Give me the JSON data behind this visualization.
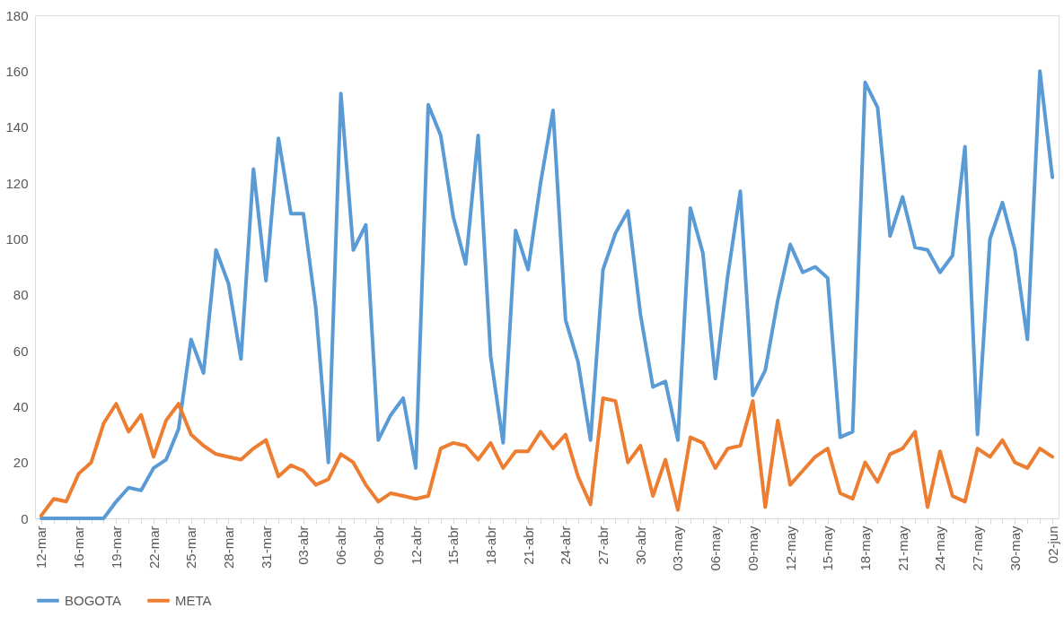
{
  "chart_data": {
    "type": "line",
    "categories": [
      "12-mar",
      null,
      null,
      "16-mar",
      null,
      null,
      "19-mar",
      null,
      null,
      "22-mar",
      null,
      null,
      "25-mar",
      null,
      null,
      "28-mar",
      null,
      null,
      "31-mar",
      null,
      null,
      "03-abr",
      null,
      null,
      "06-abr",
      null,
      null,
      "09-abr",
      null,
      null,
      "12-abr",
      null,
      null,
      "15-abr",
      null,
      null,
      "18-abr",
      null,
      null,
      "21-abr",
      null,
      null,
      "24-abr",
      null,
      null,
      "27-abr",
      null,
      null,
      "30-abr",
      null,
      null,
      "03-may",
      null,
      null,
      "06-may",
      null,
      null,
      "09-may",
      null,
      null,
      "12-may",
      null,
      null,
      "15-may",
      null,
      null,
      "18-may",
      null,
      null,
      "21-may",
      null,
      null,
      "24-may",
      null,
      null,
      "27-may",
      null,
      null,
      "30-may",
      null,
      null,
      "02-jun"
    ],
    "series": [
      {
        "name": "BOGOTA",
        "color": "#5b9bd5",
        "values": [
          0,
          0,
          0,
          0,
          0,
          0,
          6,
          11,
          10,
          18,
          21,
          32,
          64,
          52,
          96,
          84,
          57,
          125,
          85,
          136,
          109,
          109,
          75,
          20,
          152,
          96,
          105,
          28,
          37,
          43,
          18,
          148,
          137,
          108,
          91,
          137,
          58,
          27,
          103,
          89,
          120,
          146,
          71,
          56,
          28,
          89,
          102,
          110,
          73,
          47,
          49,
          28,
          111,
          95,
          50,
          87,
          117,
          44,
          53,
          78,
          98,
          88,
          90,
          86,
          29,
          31,
          156,
          147,
          101,
          115,
          97,
          96,
          88,
          94,
          133,
          30,
          100,
          113,
          96,
          64,
          160,
          122
        ]
      },
      {
        "name": "META",
        "color": "#ed7d31",
        "values": [
          1,
          7,
          6,
          16,
          20,
          34,
          41,
          31,
          37,
          22,
          35,
          41,
          30,
          26,
          23,
          22,
          21,
          25,
          28,
          15,
          19,
          17,
          12,
          14,
          23,
          20,
          12,
          6,
          9,
          8,
          7,
          8,
          25,
          27,
          26,
          21,
          27,
          18,
          24,
          24,
          31,
          25,
          30,
          15,
          5,
          43,
          42,
          20,
          26,
          8,
          21,
          3,
          29,
          27,
          18,
          25,
          26,
          42,
          4,
          35,
          12,
          17,
          22,
          25,
          9,
          7,
          20,
          13,
          23,
          25,
          31,
          4,
          24,
          8,
          6,
          25,
          22,
          28,
          20,
          18,
          25,
          22
        ]
      }
    ],
    "ylim": [
      0,
      180
    ],
    "yticks": [
      0,
      20,
      40,
      60,
      80,
      100,
      120,
      140,
      160,
      180
    ],
    "legend": "bottom"
  }
}
